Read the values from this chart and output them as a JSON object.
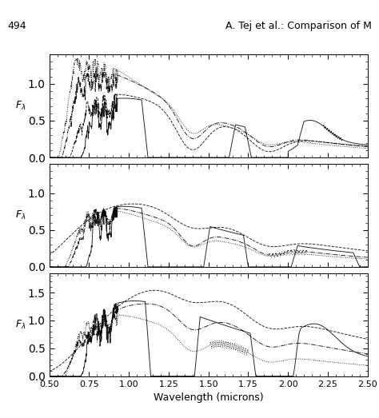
{
  "title_top": "A. Tej et al.: Comparison of M",
  "page_num": "494",
  "xlabel": "Wavelength (microns)",
  "ylabel": "F_\\lambda",
  "xlim": [
    0.5,
    2.5
  ],
  "panels": [
    {
      "ylim": [
        0,
        1.4
      ],
      "yticks": [
        0,
        0.5,
        1
      ]
    },
    {
      "ylim": [
        0,
        1.4
      ],
      "yticks": [
        0,
        0.5,
        1
      ]
    },
    {
      "ylim": [
        0,
        1.85
      ],
      "yticks": [
        0,
        0.5,
        1,
        1.5
      ]
    }
  ],
  "line_color": "#000000",
  "bg_color": "#ffffff"
}
